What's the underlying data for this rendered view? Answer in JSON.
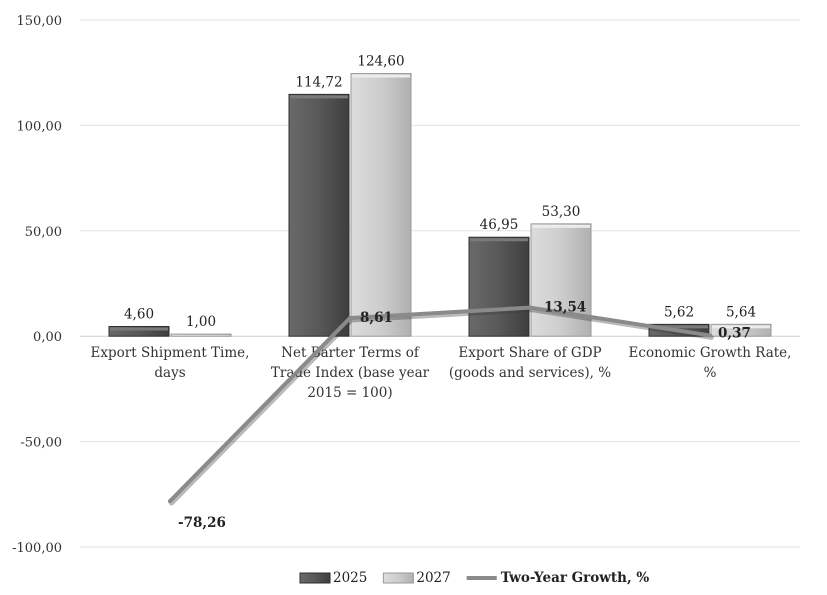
{
  "chart_data": {
    "type": "bar",
    "categories": [
      [
        "Export Shipment Time,",
        "days"
      ],
      [
        "Net Barter Terms of",
        "Trade Index (base year",
        "2015 = 100)"
      ],
      [
        "Export Share of GDP",
        "(goods and services), %"
      ],
      [
        "Economic Growth Rate,",
        "%"
      ]
    ],
    "series": [
      {
        "name": "2025",
        "kind": "bar",
        "values": [
          4.6,
          114.72,
          46.95,
          5.62
        ],
        "labels": [
          "4,60",
          "114,72",
          "46,95",
          "5,62"
        ],
        "color": "#555555"
      },
      {
        "name": "2027",
        "kind": "bar",
        "values": [
          1.0,
          124.6,
          53.3,
          5.64
        ],
        "labels": [
          "1,00",
          "124,60",
          "53,30",
          "5,64"
        ],
        "color": "#c8c8c8"
      },
      {
        "name": "Two-Year Growth, %",
        "kind": "line",
        "values": [
          -78.26,
          8.61,
          13.54,
          0.37
        ],
        "labels": [
          "-78,26",
          "8,61",
          "13,54",
          "0,37"
        ],
        "color": "#8a8a8a"
      }
    ],
    "ylim": [
      -100,
      150
    ],
    "yticks": [
      150,
      100,
      50,
      0,
      -50,
      -100
    ],
    "ytick_labels": [
      "150,00",
      "100,00",
      "50,00",
      "0,00",
      "-50,00",
      "-100,00"
    ],
    "grid": true,
    "legend_position": "bottom",
    "title": "",
    "xlabel": "",
    "ylabel": ""
  }
}
